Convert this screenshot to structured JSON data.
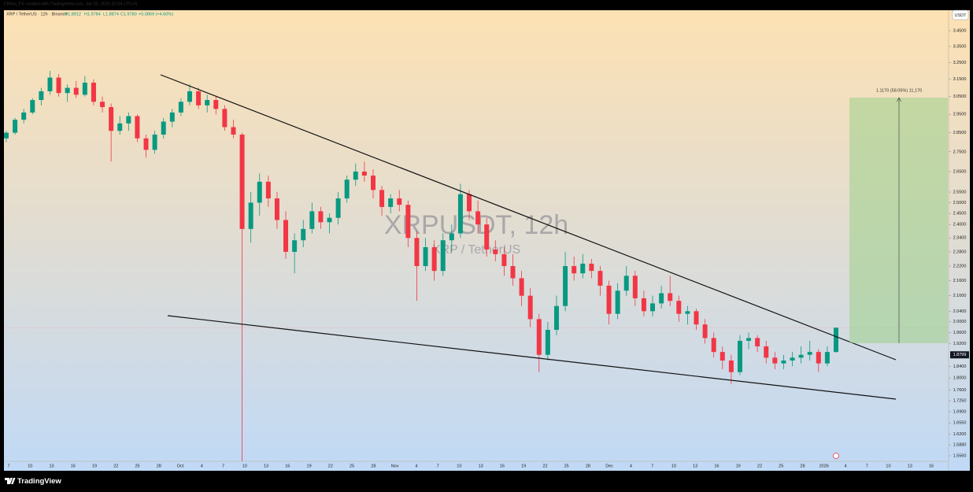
{
  "header": {
    "author_line": "Clifton_FX created with TradingView.com, Jan 02, 2026 22:04 UTC+5",
    "symbol": "XRP / TetherUS · 12h · Binance",
    "ohlc": [
      "O1.8912",
      "H1.9784",
      "L1.8874",
      "C1.9780"
    ],
    "change": "+0.0869 (+4.60%)"
  },
  "footer": {
    "brand": "TradingView"
  },
  "chart_data": {
    "type": "candlestick",
    "watermark": "XRPUSDT, 12h",
    "watermark_subtitle": "XRP / TetherUS",
    "y_unit": "USDT",
    "log_scale": true,
    "up_color": "#089981",
    "down_color": "#f23645",
    "measure_label": "1.1170 (58.05%) 11,170",
    "price_marker": {
      "value": 1.8799,
      "label": "1.8799"
    },
    "ylim": [
      1.513,
      3.585
    ],
    "yticks": [
      {
        "value": 3.45,
        "label": "3.4500"
      },
      {
        "value": 3.35,
        "label": "3.3500"
      },
      {
        "value": 3.25,
        "label": "3.2500"
      },
      {
        "value": 3.15,
        "label": "3.1500"
      },
      {
        "value": 3.05,
        "label": "3.0500"
      },
      {
        "value": 2.95,
        "label": "2.9500"
      },
      {
        "value": 2.85,
        "label": "2.8500"
      },
      {
        "value": 2.75,
        "label": "2.7500"
      },
      {
        "value": 2.65,
        "label": "2.6500"
      },
      {
        "value": 2.55,
        "label": "2.5500"
      },
      {
        "value": 2.5,
        "label": "2.5000"
      },
      {
        "value": 2.45,
        "label": "2.4500"
      },
      {
        "value": 2.4,
        "label": "2.4000"
      },
      {
        "value": 2.34,
        "label": "2.3400"
      },
      {
        "value": 2.28,
        "label": "2.2800"
      },
      {
        "value": 2.22,
        "label": "2.2200"
      },
      {
        "value": 2.16,
        "label": "2.1600"
      },
      {
        "value": 2.1,
        "label": "2.1000"
      },
      {
        "value": 2.04,
        "label": "2.0400"
      },
      {
        "value": 2.0,
        "label": "2.0000"
      },
      {
        "value": 1.96,
        "label": "1.9600"
      },
      {
        "value": 1.92,
        "label": "1.9200"
      },
      {
        "value": 1.84,
        "label": "1.8400"
      },
      {
        "value": 1.8,
        "label": "1.8000"
      },
      {
        "value": 1.76,
        "label": "1.7600"
      },
      {
        "value": 1.725,
        "label": "1.7250"
      },
      {
        "value": 1.69,
        "label": "1.6900"
      },
      {
        "value": 1.655,
        "label": "1.6550"
      },
      {
        "value": 1.62,
        "label": "1.6200"
      },
      {
        "value": 1.588,
        "label": "1.5880"
      },
      {
        "value": 1.556,
        "label": "1.5560"
      }
    ],
    "x_labels": [
      "7",
      "10",
      "13",
      "16",
      "19",
      "22",
      "25",
      "28",
      "Oct",
      "4",
      "7",
      "10",
      "13",
      "16",
      "19",
      "22",
      "25",
      "28",
      "Nov",
      "4",
      "7",
      "10",
      "13",
      "16",
      "19",
      "22",
      "25",
      "28",
      "Dec",
      "4",
      "7",
      "10",
      "13",
      "16",
      "19",
      "22",
      "25",
      "28",
      "2026",
      "4",
      "7",
      "10",
      "13",
      "16"
    ],
    "open": [
      2.82,
      2.85,
      2.92,
      2.96,
      3.03,
      3.08,
      3.16,
      3.07,
      3.1,
      3.06,
      3.13,
      3.02,
      2.99,
      2.86,
      2.9,
      2.94,
      2.82,
      2.76,
      2.84,
      2.91,
      2.96,
      3.02,
      3.08,
      3.0,
      3.03,
      2.98,
      2.88,
      2.84,
      2.38,
      2.5,
      2.6,
      2.52,
      2.42,
      2.28,
      2.33,
      2.38,
      2.46,
      2.41,
      2.43,
      2.52,
      2.61,
      2.65,
      2.63,
      2.56,
      2.48,
      2.52,
      2.49,
      2.34,
      2.22,
      2.3,
      2.2,
      2.33,
      2.36,
      2.54,
      2.46,
      2.4,
      2.29,
      2.27,
      2.22,
      2.17,
      2.1,
      2.01,
      1.88,
      1.97,
      2.06,
      2.22,
      2.19,
      2.23,
      2.2,
      2.14,
      2.03,
      2.12,
      2.18,
      2.09,
      2.04,
      2.07,
      2.11,
      2.08,
      2.03,
      2.04,
      1.99,
      1.94,
      1.89,
      1.86,
      1.82,
      1.93,
      1.94,
      1.91,
      1.87,
      1.85,
      1.86,
      1.87,
      1.88,
      1.89,
      1.85,
      1.89
    ],
    "high": [
      2.86,
      2.93,
      2.98,
      3.04,
      3.1,
      3.2,
      3.18,
      3.12,
      3.14,
      3.17,
      3.15,
      3.05,
      3.01,
      2.94,
      2.96,
      2.95,
      2.84,
      2.86,
      2.93,
      2.98,
      3.04,
      3.12,
      3.1,
      3.06,
      3.05,
      3.0,
      2.92,
      2.85,
      2.55,
      2.64,
      2.63,
      2.55,
      2.46,
      2.36,
      2.42,
      2.5,
      2.48,
      2.45,
      2.55,
      2.63,
      2.69,
      2.7,
      2.66,
      2.58,
      2.54,
      2.56,
      2.51,
      2.37,
      2.34,
      2.33,
      2.36,
      2.4,
      2.59,
      2.56,
      2.51,
      2.43,
      2.33,
      2.3,
      2.27,
      2.2,
      2.13,
      2.03,
      2.0,
      2.1,
      2.28,
      2.26,
      2.27,
      2.25,
      2.22,
      2.16,
      2.15,
      2.22,
      2.2,
      2.12,
      2.1,
      2.14,
      2.18,
      2.1,
      2.06,
      2.05,
      2.01,
      1.96,
      1.91,
      1.88,
      1.95,
      1.96,
      1.95,
      1.93,
      1.89,
      1.88,
      1.89,
      1.91,
      1.93,
      1.9,
      1.91,
      1.9784
    ],
    "low": [
      2.8,
      2.84,
      2.9,
      2.95,
      3.0,
      3.06,
      3.05,
      3.02,
      3.04,
      3.05,
      3.0,
      2.96,
      2.7,
      2.84,
      2.86,
      2.8,
      2.72,
      2.74,
      2.82,
      2.88,
      2.94,
      3.0,
      2.98,
      2.96,
      2.95,
      2.86,
      2.82,
      1.54,
      2.32,
      2.44,
      2.48,
      2.38,
      2.25,
      2.19,
      2.3,
      2.36,
      2.38,
      2.36,
      2.4,
      2.5,
      2.58,
      2.6,
      2.52,
      2.44,
      2.45,
      2.46,
      2.3,
      2.08,
      2.2,
      2.16,
      2.18,
      2.28,
      2.34,
      2.42,
      2.36,
      2.26,
      2.24,
      2.18,
      2.14,
      2.06,
      1.98,
      1.82,
      1.86,
      1.95,
      2.04,
      2.16,
      2.17,
      2.17,
      2.1,
      1.99,
      2.01,
      2.1,
      2.06,
      2.02,
      2.02,
      2.05,
      2.06,
      2.0,
      1.99,
      1.97,
      1.92,
      1.87,
      1.83,
      1.78,
      1.81,
      1.9,
      1.89,
      1.85,
      1.83,
      1.83,
      1.84,
      1.85,
      1.86,
      1.82,
      1.84,
      1.8874
    ],
    "close": [
      2.85,
      2.92,
      2.96,
      3.03,
      3.08,
      3.16,
      3.07,
      3.1,
      3.06,
      3.13,
      3.02,
      2.99,
      2.86,
      2.9,
      2.94,
      2.82,
      2.76,
      2.84,
      2.91,
      2.96,
      3.02,
      3.08,
      3.0,
      3.03,
      2.98,
      2.88,
      2.84,
      2.38,
      2.5,
      2.6,
      2.52,
      2.42,
      2.28,
      2.33,
      2.38,
      2.46,
      2.41,
      2.43,
      2.52,
      2.61,
      2.65,
      2.63,
      2.56,
      2.48,
      2.52,
      2.49,
      2.34,
      2.22,
      2.3,
      2.2,
      2.33,
      2.36,
      2.54,
      2.46,
      2.4,
      2.29,
      2.27,
      2.22,
      2.17,
      2.1,
      2.01,
      1.88,
      1.97,
      2.06,
      2.22,
      2.19,
      2.23,
      2.2,
      2.14,
      2.03,
      2.12,
      2.18,
      2.09,
      2.04,
      2.07,
      2.11,
      2.08,
      2.03,
      2.04,
      1.99,
      1.94,
      1.89,
      1.86,
      1.82,
      1.93,
      1.94,
      1.91,
      1.87,
      1.85,
      1.86,
      1.87,
      1.88,
      1.89,
      1.85,
      1.89,
      1.978
    ]
  }
}
